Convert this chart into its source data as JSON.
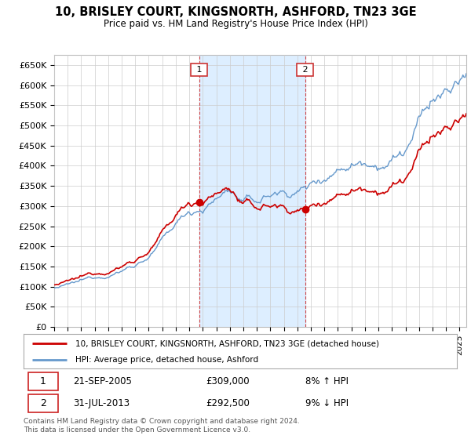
{
  "title": "10, BRISLEY COURT, KINGSNORTH, ASHFORD, TN23 3GE",
  "subtitle": "Price paid vs. HM Land Registry's House Price Index (HPI)",
  "ylim": [
    0,
    675000
  ],
  "yticks": [
    0,
    50000,
    100000,
    150000,
    200000,
    250000,
    300000,
    350000,
    400000,
    450000,
    500000,
    550000,
    600000,
    650000
  ],
  "x_start_year": 1995,
  "x_end_year": 2025,
  "transaction1_date": 2005.72,
  "transaction1_price": 309000,
  "transaction2_date": 2013.58,
  "transaction2_price": 292500,
  "legend_line1": "10, BRISLEY COURT, KINGSNORTH, ASHFORD, TN23 3GE (detached house)",
  "legend_line2": "HPI: Average price, detached house, Ashford",
  "footer": "Contains HM Land Registry data © Crown copyright and database right 2024.\nThis data is licensed under the Open Government Licence v3.0.",
  "line_color_property": "#cc0000",
  "line_color_hpi": "#6699cc",
  "background_color": "#ffffff",
  "grid_color": "#cccccc",
  "highlight_color": "#ddeeff",
  "marker_box_color": "#cc3333"
}
